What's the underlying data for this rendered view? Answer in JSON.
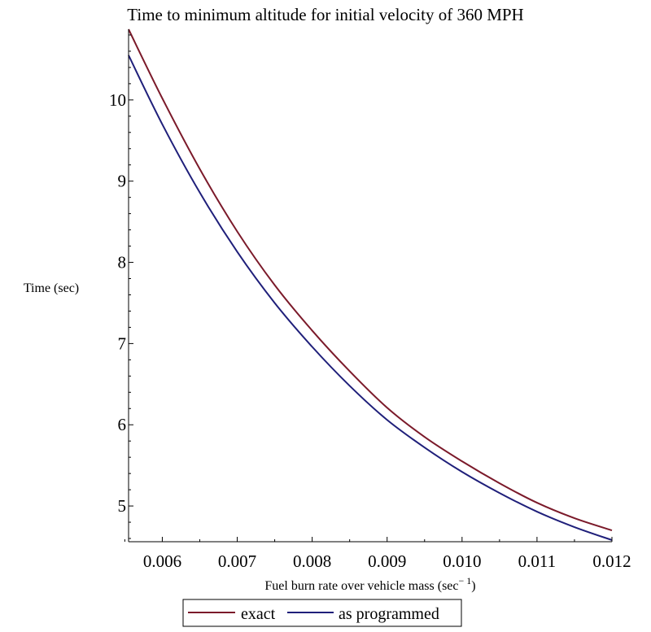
{
  "chart_data": {
    "type": "line",
    "title": "Time to minimum altitude for initial velocity of 360 MPH",
    "xlabel": "Fuel burn rate over vehicle mass (sec",
    "xlabel_sup": "− 1",
    "xlabel_close": ")",
    "ylabel": "Time (sec)",
    "xlim": [
      0.00555,
      0.012
    ],
    "ylim": [
      4.56,
      10.87
    ],
    "x_ticks": [
      "0.006",
      "0.007",
      "0.008",
      "0.009",
      "0.010",
      "0.011",
      "0.012"
    ],
    "y_ticks": [
      "5",
      "6",
      "7",
      "8",
      "9",
      "10"
    ],
    "grid": false,
    "legend_position": "bottom",
    "series": [
      {
        "name": "exact",
        "color": "#7b1a2a",
        "x": [
          0.00555,
          0.006,
          0.0065,
          0.007,
          0.0075,
          0.008,
          0.0085,
          0.009,
          0.0095,
          0.01,
          0.0105,
          0.011,
          0.0115,
          0.012
        ],
        "y": [
          10.87,
          10.02,
          9.15,
          8.38,
          7.72,
          7.16,
          6.66,
          6.21,
          5.85,
          5.55,
          5.28,
          5.04,
          4.85,
          4.7
        ]
      },
      {
        "name": "as programmed",
        "color": "#1f1f7a",
        "x": [
          0.00555,
          0.006,
          0.0065,
          0.007,
          0.0075,
          0.008,
          0.0085,
          0.009,
          0.0095,
          0.01,
          0.0105,
          0.011,
          0.0115,
          0.012
        ],
        "y": [
          10.55,
          9.7,
          8.86,
          8.13,
          7.5,
          6.96,
          6.48,
          6.06,
          5.72,
          5.42,
          5.16,
          4.93,
          4.74,
          4.58
        ]
      }
    ]
  }
}
